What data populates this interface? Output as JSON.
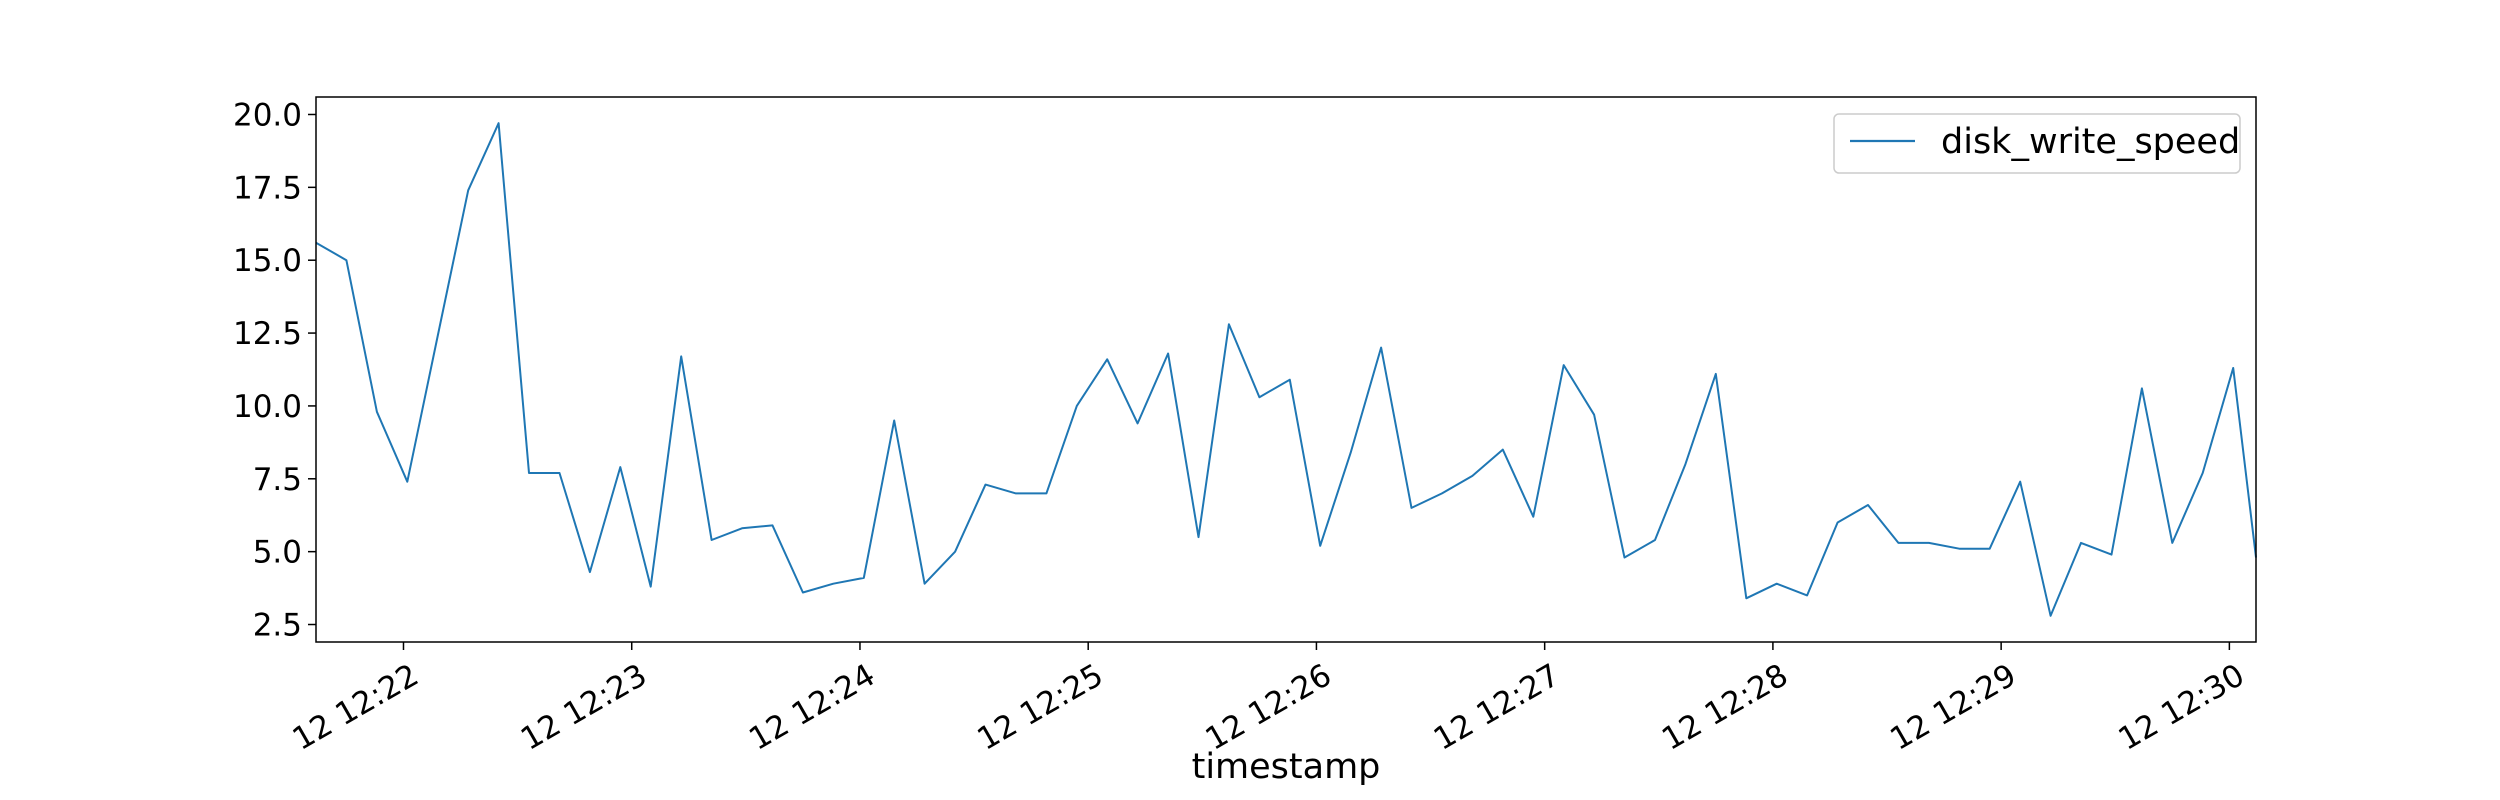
{
  "chart_data": {
    "type": "line",
    "title": "",
    "xlabel": "timestamp",
    "ylabel": "",
    "x_tick_labels": [
      "12 12:22",
      "12 12:23",
      "12 12:24",
      "12 12:25",
      "12 12:26",
      "12 12:27",
      "12 12:28",
      "12 12:29",
      "12 12:30"
    ],
    "y_tick_labels": [
      "2.5",
      "5.0",
      "7.5",
      "10.0",
      "12.5",
      "15.0",
      "17.5",
      "20.0"
    ],
    "y_ticks": [
      2.5,
      5.0,
      7.5,
      10.0,
      12.5,
      15.0,
      17.5,
      20.0
    ],
    "ylim": [
      1.9,
      20.6
    ],
    "xlim": [
      "12:21:37",
      "12:30:07"
    ],
    "legend": "top-right",
    "grid": false,
    "x": [
      "12:21:37",
      "12:21:45",
      "12:21:53",
      "12:22:01",
      "12:22:09",
      "12:22:17",
      "12:22:25",
      "12:22:33",
      "12:22:41",
      "12:22:49",
      "12:22:57",
      "12:23:05",
      "12:23:13",
      "12:23:21",
      "12:23:29",
      "12:23:37",
      "12:23:45",
      "12:23:53",
      "12:24:01",
      "12:24:09",
      "12:24:17",
      "12:24:25",
      "12:24:33",
      "12:24:41",
      "12:24:49",
      "12:24:57",
      "12:25:05",
      "12:25:13",
      "12:25:21",
      "12:25:29",
      "12:25:37",
      "12:25:45",
      "12:25:53",
      "12:26:01",
      "12:26:09",
      "12:26:17",
      "12:26:25",
      "12:26:33",
      "12:26:41",
      "12:26:49",
      "12:26:57",
      "12:27:05",
      "12:27:13",
      "12:27:21",
      "12:27:29",
      "12:27:37",
      "12:27:45",
      "12:27:53",
      "12:28:01",
      "12:28:09",
      "12:28:17",
      "12:28:25",
      "12:28:33",
      "12:28:41",
      "12:28:49",
      "12:28:57",
      "12:29:05",
      "12:29:13",
      "12:29:21",
      "12:29:29",
      "12:29:37",
      "12:29:45",
      "12:29:53",
      "12:30:01",
      "12:30:07"
    ],
    "series": [
      {
        "name": "disk_write_speed",
        "color": "#1f77b4",
        "values": [
          15.6,
          15.0,
          9.8,
          7.4,
          12.4,
          17.4,
          19.7,
          7.7,
          7.7,
          4.3,
          7.9,
          3.8,
          11.7,
          5.4,
          5.8,
          5.9,
          3.6,
          3.9,
          4.1,
          9.5,
          3.9,
          5.0,
          7.3,
          7.0,
          7.0,
          10.0,
          11.6,
          9.4,
          11.8,
          5.5,
          12.8,
          10.3,
          10.9,
          5.2,
          8.4,
          12.0,
          6.5,
          7.0,
          7.6,
          8.5,
          6.2,
          11.4,
          9.7,
          4.8,
          5.4,
          8.0,
          11.1,
          3.4,
          3.9,
          3.5,
          6.0,
          6.6,
          5.3,
          5.3,
          5.1,
          5.1,
          7.4,
          2.8,
          5.3,
          4.9,
          10.6,
          5.3,
          7.7,
          11.3,
          4.8
        ]
      }
    ]
  }
}
